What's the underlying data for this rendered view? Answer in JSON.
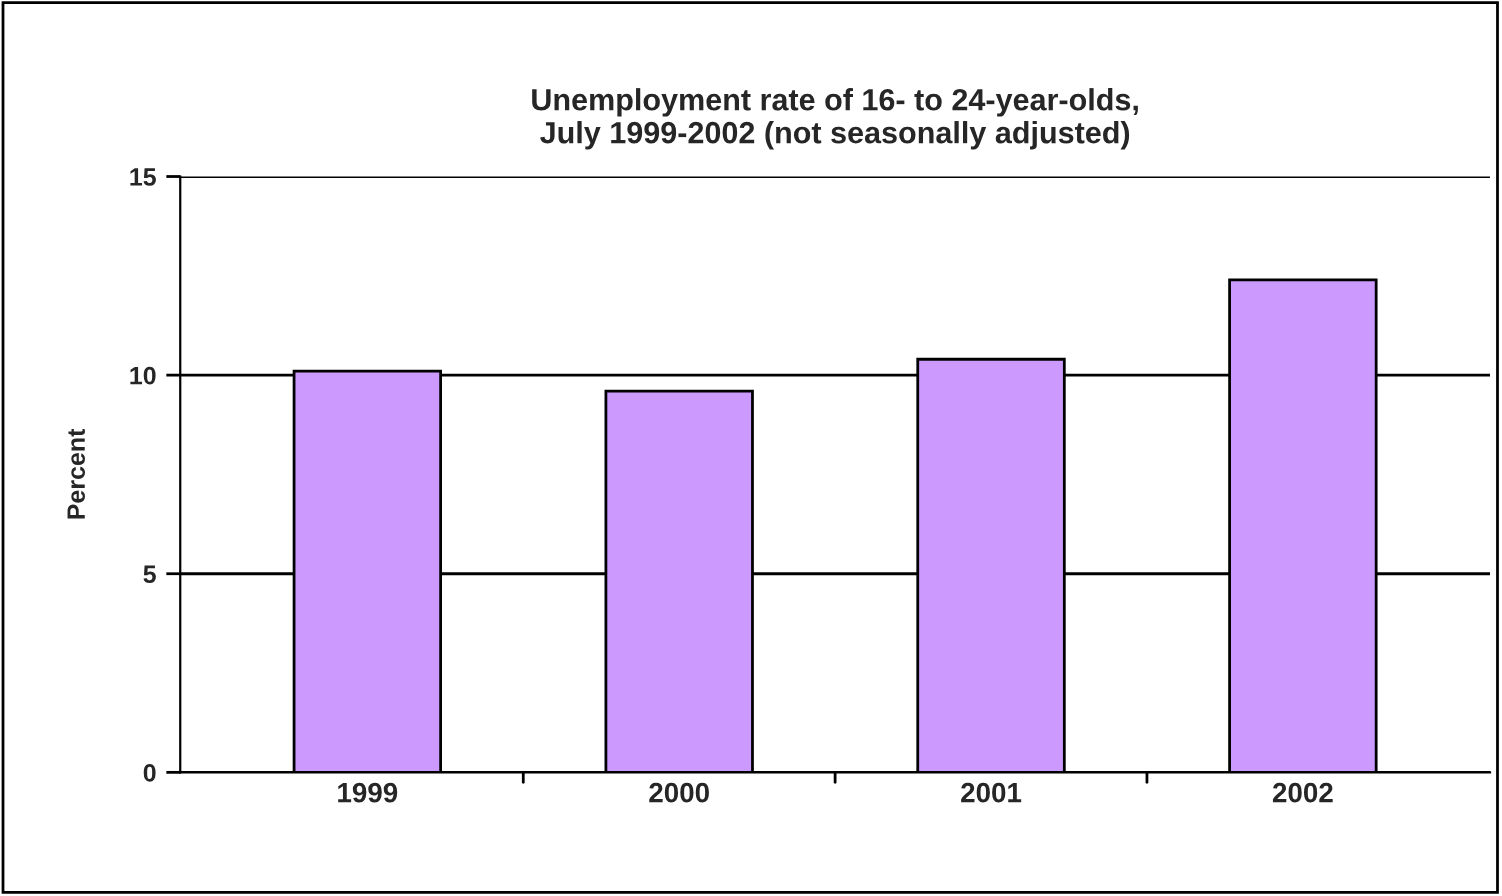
{
  "chart_data": {
    "type": "bar",
    "title": "Unemployment rate of 16- to 24-year-olds,\nJuly 1999-2002 (not seasonally adjusted)",
    "ylabel": "Percent",
    "categories": [
      "1999",
      "2000",
      "2001",
      "2002"
    ],
    "values": [
      10.1,
      9.6,
      10.4,
      12.4
    ],
    "color": "#cc99ff",
    "ylim": [
      0,
      15
    ],
    "yticks": [
      0,
      5,
      10,
      15
    ],
    "grid": "y",
    "legend": false
  }
}
